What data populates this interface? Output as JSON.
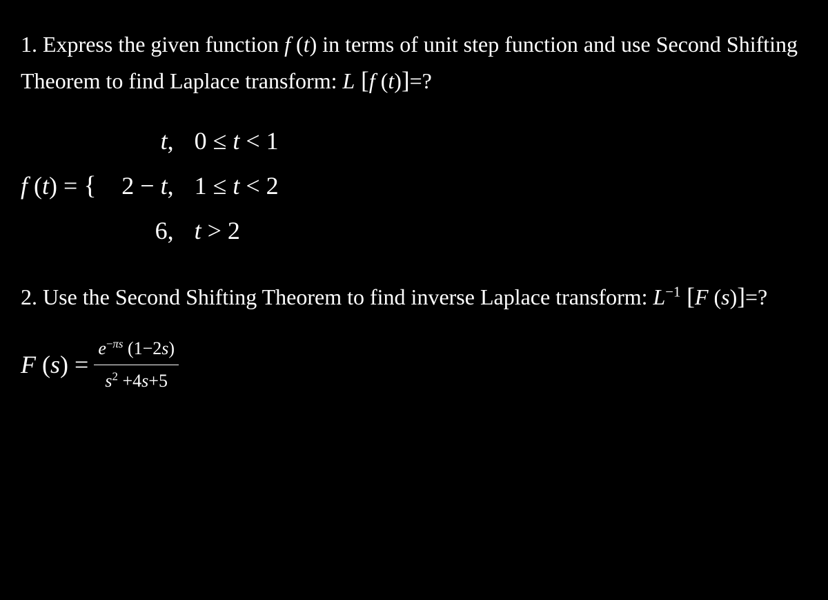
{
  "problem1": {
    "prefix": "1. Express the given function ",
    "func": "f",
    "arg_open": " (",
    "arg": "t",
    "arg_close": ")",
    "mid": " in terms of unit step function and use Second Shifting Theorem to find Laplace transform: ",
    "L": "L",
    "lb": " [",
    "f2": "f",
    "arg2_open": " (",
    "arg2": "t",
    "arg2_close": ")",
    "rb": "]",
    "eq": "=?"
  },
  "piecewise": {
    "lhs_f": "f",
    "lhs_open": " (",
    "lhs_arg": "t",
    "lhs_close": ") = ",
    "brace": "{",
    "row1_left_var": "t",
    "row1_left_comma": ",",
    "row1_right_a": "0 ≤ ",
    "row1_right_var": "t",
    "row1_right_b": " < 1",
    "row2_left_a": "2 − ",
    "row2_left_var": "t",
    "row2_left_comma": ",",
    "row2_right_a": "1 ≤ ",
    "row2_right_var": "t",
    "row2_right_b": " < 2",
    "row3_left": "6,",
    "row3_right_var": "t",
    "row3_right_b": " > 2"
  },
  "problem2": {
    "prefix": "2. Use the Second Shifting Theorem to find inverse Laplace transform: ",
    "L": "L",
    "sup": "−1",
    "lb": " [",
    "F": "F",
    "arg_open": " (",
    "arg": "s",
    "arg_close": ")",
    "rb": "]",
    "eq": "=?"
  },
  "formula": {
    "F": "F",
    "arg_open": " (",
    "arg": "s",
    "arg_close": ") = ",
    "num_e": "e",
    "num_exp_a": "−",
    "num_exp_pi": "π",
    "num_exp_s": "s",
    "num_rest_a": " (1−2",
    "num_rest_s": "s",
    "num_rest_b": ")",
    "den_s": "s",
    "den_sq": "2",
    "den_a": " +4",
    "den_s2": "s",
    "den_b": "+5"
  },
  "colors": {
    "background": "#000000",
    "text": "#ffffff"
  },
  "typography": {
    "body_fontsize": 32,
    "math_fontsize": 36,
    "fraction_fontsize": 26
  }
}
